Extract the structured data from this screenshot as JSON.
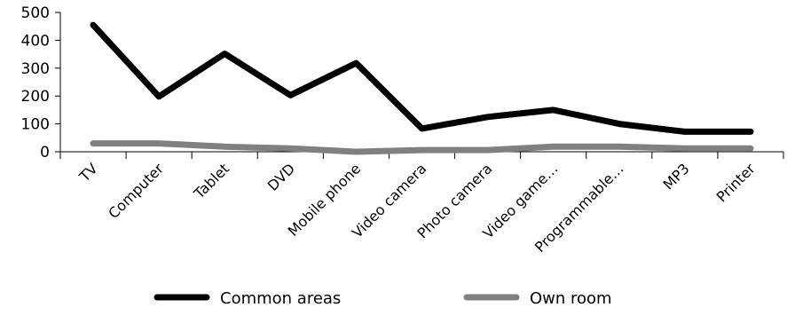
{
  "chart_data": {
    "type": "line",
    "categories": [
      "TV",
      "Computer",
      "Tablet",
      "DVD",
      "Mobile phone",
      "Video camera",
      "Photo camera",
      "Video game…",
      "Programmable…",
      "MP3",
      "Printer"
    ],
    "series": [
      {
        "name": "Common areas",
        "values": [
          455,
          198,
          352,
          203,
          318,
          83,
          125,
          150,
          100,
          72,
          72
        ],
        "color": "#000000"
      },
      {
        "name": "Own room",
        "values": [
          30,
          30,
          18,
          12,
          0,
          6,
          6,
          18,
          18,
          12,
          12
        ],
        "color": "#808080"
      }
    ],
    "yticks": [
      0,
      100,
      200,
      300,
      400,
      500
    ],
    "ylim": [
      0,
      500
    ],
    "title": "",
    "xlabel": "",
    "ylabel": "",
    "grid": false,
    "legend": "bottom"
  }
}
